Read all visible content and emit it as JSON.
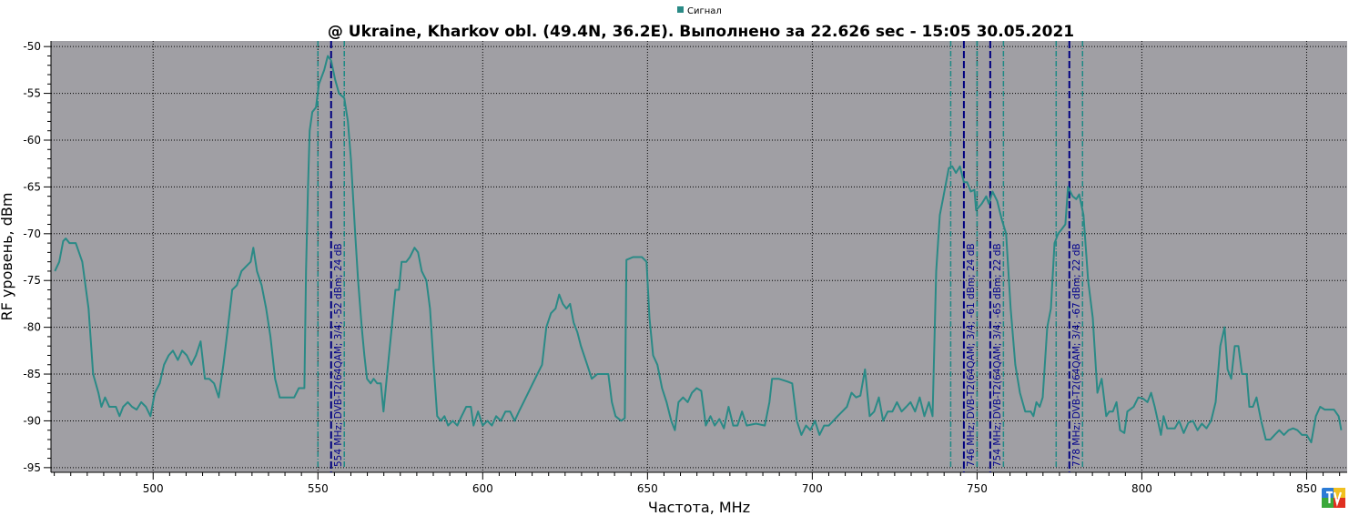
{
  "chart_data": {
    "type": "line",
    "title": "@ Ukraine, Kharkov obl. (49.4N, 36.2E). Выполнено за 22.626 sec - 15:05 30.05.2021",
    "xlabel": "Частота, MHz",
    "ylabel": "RF уровень, dBm",
    "xlim": [
      469,
      862.3
    ],
    "ylim": [
      -95.5,
      -49.4
    ],
    "xticks": [
      500,
      550,
      600,
      650,
      700,
      750,
      800,
      850
    ],
    "yticks": [
      -50,
      -55,
      -60,
      -65,
      -70,
      -75,
      -80,
      -85,
      -90,
      -95
    ],
    "grid": true,
    "legend_position": "top",
    "colors": {
      "plot_bg": "#a09fa4",
      "series": "#2a8a86",
      "marker_center": "#00007f",
      "marker_edge": "#1e8a86",
      "grid": "#000000"
    },
    "series": [
      {
        "name": "Сигнал",
        "points": [
          [
            470.2,
            -74
          ],
          [
            471.5,
            -73
          ],
          [
            472.7,
            -70.8
          ],
          [
            473.5,
            -70.5
          ],
          [
            474.6,
            -71
          ],
          [
            476.5,
            -71
          ],
          [
            478.5,
            -73
          ],
          [
            480.4,
            -78
          ],
          [
            481.8,
            -85
          ],
          [
            483.4,
            -87
          ],
          [
            484.3,
            -88.5
          ],
          [
            485.4,
            -87.5
          ],
          [
            486.7,
            -88.5
          ],
          [
            488.7,
            -88.5
          ],
          [
            489.8,
            -89.5
          ],
          [
            490.9,
            -88.5
          ],
          [
            492.3,
            -88
          ],
          [
            493.6,
            -88.5
          ],
          [
            495,
            -88.8
          ],
          [
            496.4,
            -88
          ],
          [
            497.8,
            -88.5
          ],
          [
            499.2,
            -89.5
          ],
          [
            500.5,
            -87
          ],
          [
            502,
            -86
          ],
          [
            503.3,
            -84
          ],
          [
            504.7,
            -83
          ],
          [
            506,
            -82.5
          ],
          [
            507.5,
            -83.5
          ],
          [
            508.8,
            -82.5
          ],
          [
            510.2,
            -83
          ],
          [
            511.6,
            -84
          ],
          [
            513,
            -83
          ],
          [
            514.4,
            -81.5
          ],
          [
            515.7,
            -85.5
          ],
          [
            517,
            -85.5
          ],
          [
            518.5,
            -86
          ],
          [
            519.9,
            -87.5
          ],
          [
            521.3,
            -84
          ],
          [
            522.7,
            -80
          ],
          [
            524,
            -76
          ],
          [
            525.4,
            -75.5
          ],
          [
            526.8,
            -74
          ],
          [
            528.2,
            -73.5
          ],
          [
            529.6,
            -73
          ],
          [
            530.4,
            -71.5
          ],
          [
            531.5,
            -74
          ],
          [
            532.9,
            -75.5
          ],
          [
            534.3,
            -78
          ],
          [
            535.6,
            -81
          ],
          [
            537,
            -85.5
          ],
          [
            538.4,
            -87.5
          ],
          [
            539.8,
            -87.5
          ],
          [
            541.4,
            -87.5
          ],
          [
            542.8,
            -87.5
          ],
          [
            544.2,
            -86.5
          ],
          [
            545.9,
            -86.5
          ],
          [
            546.4,
            -74
          ],
          [
            547,
            -65
          ],
          [
            547.5,
            -59
          ],
          [
            548.3,
            -57
          ],
          [
            549.4,
            -56.5
          ],
          [
            550.3,
            -54
          ],
          [
            551.9,
            -52.5
          ],
          [
            553,
            -51
          ],
          [
            554,
            -51.5
          ],
          [
            555.2,
            -53.5
          ],
          [
            556.4,
            -55
          ],
          [
            558,
            -55.5
          ],
          [
            559.1,
            -58
          ],
          [
            560,
            -62
          ],
          [
            561.3,
            -70
          ],
          [
            562.2,
            -75
          ],
          [
            563.3,
            -80
          ],
          [
            564.1,
            -83
          ],
          [
            564.9,
            -85.5
          ],
          [
            566,
            -86
          ],
          [
            566.9,
            -85.5
          ],
          [
            568,
            -86
          ],
          [
            569.1,
            -86
          ],
          [
            569.9,
            -89
          ],
          [
            571,
            -85
          ],
          [
            572.4,
            -80
          ],
          [
            573.5,
            -76
          ],
          [
            574.6,
            -76
          ],
          [
            575.4,
            -73
          ],
          [
            576.8,
            -73
          ],
          [
            577.9,
            -72.5
          ],
          [
            579.3,
            -71.5
          ],
          [
            580.4,
            -72
          ],
          [
            581.5,
            -74
          ],
          [
            582.9,
            -75
          ],
          [
            584,
            -78
          ],
          [
            585.1,
            -84
          ],
          [
            586.2,
            -89.5
          ],
          [
            587.3,
            -90
          ],
          [
            588.4,
            -89.5
          ],
          [
            589.5,
            -90.5
          ],
          [
            590.9,
            -90
          ],
          [
            592.3,
            -90.5
          ],
          [
            593.6,
            -89.5
          ],
          [
            595,
            -88.5
          ],
          [
            596.4,
            -88.5
          ],
          [
            597.2,
            -90.5
          ],
          [
            598.6,
            -89
          ],
          [
            600,
            -90.5
          ],
          [
            601.4,
            -90
          ],
          [
            602.8,
            -90.5
          ],
          [
            604.1,
            -89.5
          ],
          [
            605.5,
            -90
          ],
          [
            606.9,
            -89
          ],
          [
            608.3,
            -89
          ],
          [
            609.7,
            -90
          ],
          [
            611,
            -89
          ],
          [
            612.4,
            -88
          ],
          [
            613.8,
            -87
          ],
          [
            615.2,
            -86
          ],
          [
            616.6,
            -85
          ],
          [
            618,
            -84
          ],
          [
            619.3,
            -80
          ],
          [
            620.7,
            -78.5
          ],
          [
            622.1,
            -78
          ],
          [
            623.2,
            -76.5
          ],
          [
            624.3,
            -77.5
          ],
          [
            625.4,
            -78
          ],
          [
            626.5,
            -77.5
          ],
          [
            627.6,
            -79.5
          ],
          [
            628.7,
            -80.5
          ],
          [
            629.8,
            -82
          ],
          [
            631.7,
            -84
          ],
          [
            633.1,
            -85.5
          ],
          [
            634.8,
            -85
          ],
          [
            636.5,
            -85
          ],
          [
            638.1,
            -85
          ],
          [
            639.2,
            -88
          ],
          [
            640.3,
            -89.5
          ],
          [
            642,
            -90
          ],
          [
            643.1,
            -89.7
          ],
          [
            643.6,
            -72.8
          ],
          [
            645.6,
            -72.5
          ],
          [
            648.3,
            -72.5
          ],
          [
            649.7,
            -73
          ],
          [
            650.6,
            -79
          ],
          [
            651.7,
            -83
          ],
          [
            653,
            -84
          ],
          [
            654.4,
            -86.5
          ],
          [
            655.8,
            -88
          ],
          [
            657.2,
            -90
          ],
          [
            658.3,
            -91
          ],
          [
            659.4,
            -88
          ],
          [
            660.8,
            -87.5
          ],
          [
            662.2,
            -88
          ],
          [
            663.5,
            -87
          ],
          [
            664.9,
            -86.5
          ],
          [
            666.3,
            -86.8
          ],
          [
            667.7,
            -90.5
          ],
          [
            669.1,
            -89.5
          ],
          [
            670.4,
            -90.5
          ],
          [
            671.8,
            -89.8
          ],
          [
            673.2,
            -90.8
          ],
          [
            674.6,
            -88.5
          ],
          [
            676,
            -90.5
          ],
          [
            677.3,
            -90.5
          ],
          [
            678.7,
            -89
          ],
          [
            680.1,
            -90.5
          ],
          [
            682.9,
            -90.3
          ],
          [
            685.6,
            -90.5
          ],
          [
            687,
            -88
          ],
          [
            687.8,
            -85.5
          ],
          [
            689.8,
            -85.5
          ],
          [
            692.5,
            -85.8
          ],
          [
            693.9,
            -86
          ],
          [
            695.3,
            -90
          ],
          [
            696.7,
            -91.5
          ],
          [
            698.1,
            -90.5
          ],
          [
            699.4,
            -91
          ],
          [
            700.8,
            -90
          ],
          [
            702.2,
            -91.5
          ],
          [
            703.6,
            -90.5
          ],
          [
            705,
            -90.5
          ],
          [
            706.4,
            -90
          ],
          [
            707.7,
            -89.5
          ],
          [
            709.1,
            -89
          ],
          [
            710.5,
            -88.5
          ],
          [
            711.9,
            -87
          ],
          [
            713.3,
            -87.5
          ],
          [
            714.6,
            -87.3
          ],
          [
            716,
            -84.5
          ],
          [
            717.4,
            -89.5
          ],
          [
            718.8,
            -89
          ],
          [
            720.2,
            -87.5
          ],
          [
            721.5,
            -90
          ],
          [
            722.9,
            -89
          ],
          [
            724.3,
            -89
          ],
          [
            725.7,
            -88
          ],
          [
            727.1,
            -89
          ],
          [
            728.5,
            -88.5
          ],
          [
            729.8,
            -88
          ],
          [
            731.2,
            -89
          ],
          [
            732.6,
            -87.5
          ],
          [
            734,
            -89.5
          ],
          [
            735.4,
            -88
          ],
          [
            736.5,
            -89.5
          ],
          [
            737.6,
            -74
          ],
          [
            738.7,
            -68
          ],
          [
            739.8,
            -66
          ],
          [
            741.4,
            -63
          ],
          [
            742.5,
            -62.8
          ],
          [
            743.6,
            -63.5
          ],
          [
            744.8,
            -62.8
          ],
          [
            746,
            -64.5
          ],
          [
            747,
            -64.5
          ],
          [
            748.1,
            -65.5
          ],
          [
            749.2,
            -65.3
          ],
          [
            749.7,
            -67.5
          ],
          [
            751.4,
            -66.8
          ],
          [
            752.8,
            -66
          ],
          [
            753.6,
            -66.8
          ],
          [
            754.7,
            -65.5
          ],
          [
            756.1,
            -66.5
          ],
          [
            757.5,
            -68.5
          ],
          [
            758.8,
            -70
          ],
          [
            760.2,
            -78
          ],
          [
            761.6,
            -84
          ],
          [
            763,
            -87
          ],
          [
            764.6,
            -89
          ],
          [
            766.3,
            -89
          ],
          [
            767.1,
            -89.5
          ],
          [
            768,
            -88
          ],
          [
            769,
            -88.5
          ],
          [
            769.9,
            -87.5
          ],
          [
            771.3,
            -80
          ],
          [
            772.4,
            -78
          ],
          [
            773.5,
            -71
          ],
          [
            774.6,
            -70
          ],
          [
            775.7,
            -69.5
          ],
          [
            776.8,
            -69
          ],
          [
            777.6,
            -65
          ],
          [
            779,
            -66
          ],
          [
            780.1,
            -66.3
          ],
          [
            781,
            -65.8
          ],
          [
            782.3,
            -68
          ],
          [
            783.7,
            -75
          ],
          [
            785.1,
            -79
          ],
          [
            786.5,
            -87
          ],
          [
            787.8,
            -85.5
          ],
          [
            789.2,
            -89.5
          ],
          [
            790.1,
            -89
          ],
          [
            791.2,
            -89
          ],
          [
            792.3,
            -88
          ],
          [
            793.4,
            -91
          ],
          [
            794.7,
            -91.3
          ],
          [
            795.6,
            -89
          ],
          [
            797.5,
            -88.5
          ],
          [
            798.9,
            -87.5
          ],
          [
            800.3,
            -87.6
          ],
          [
            801.7,
            -88
          ],
          [
            802.8,
            -87
          ],
          [
            803.9,
            -88.5
          ],
          [
            805.8,
            -91.5
          ],
          [
            806.6,
            -89.5
          ],
          [
            807.7,
            -90.8
          ],
          [
            810,
            -90.8
          ],
          [
            811.3,
            -90
          ],
          [
            812.7,
            -91.3
          ],
          [
            814.1,
            -90.2
          ],
          [
            815.5,
            -90
          ],
          [
            816.9,
            -91
          ],
          [
            818.2,
            -90.3
          ],
          [
            819.6,
            -90.8
          ],
          [
            821,
            -90
          ],
          [
            822.4,
            -88
          ],
          [
            823.8,
            -82
          ],
          [
            825.1,
            -80
          ],
          [
            826,
            -84.5
          ],
          [
            827.1,
            -85.5
          ],
          [
            828.2,
            -82
          ],
          [
            829.3,
            -82
          ],
          [
            830.4,
            -85
          ],
          [
            831.8,
            -85
          ],
          [
            832.6,
            -88.5
          ],
          [
            833.7,
            -88.5
          ],
          [
            834.8,
            -87.5
          ],
          [
            836.2,
            -90
          ],
          [
            837.6,
            -92
          ],
          [
            839,
            -92
          ],
          [
            840.3,
            -91.5
          ],
          [
            841.7,
            -91
          ],
          [
            843.1,
            -91.5
          ],
          [
            844.5,
            -91
          ],
          [
            845.9,
            -90.8
          ],
          [
            847.2,
            -91
          ],
          [
            848.6,
            -91.5
          ],
          [
            850,
            -91.5
          ],
          [
            851.4,
            -92.3
          ],
          [
            852.8,
            -89.5
          ],
          [
            854.1,
            -88.5
          ],
          [
            855.5,
            -88.8
          ],
          [
            858.3,
            -88.8
          ],
          [
            859.7,
            -89.5
          ],
          [
            860.5,
            -91
          ]
        ]
      }
    ],
    "markers": [
      {
        "freq": 554,
        "low": 550,
        "high": 558,
        "label": "554 MHz; DVB-T2(64QAM; 3/4; -52 dBm; 24 dB"
      },
      {
        "freq": 746,
        "low": 742,
        "high": 750,
        "label": "746 MHz; DVB-T2(64QAM; 3/4; -61 dBm; 24 dB"
      },
      {
        "freq": 754,
        "low": 750,
        "high": 758,
        "label": "754 MHz; DVB-T2(64QAM; 3/4; -65 dBm; 22 dB"
      },
      {
        "freq": 778,
        "low": 774,
        "high": 782,
        "label": "778 MHz; DVB-T2(64QAM; 3/4; -67 dBm; 22 dB"
      }
    ],
    "logo": "TV"
  }
}
